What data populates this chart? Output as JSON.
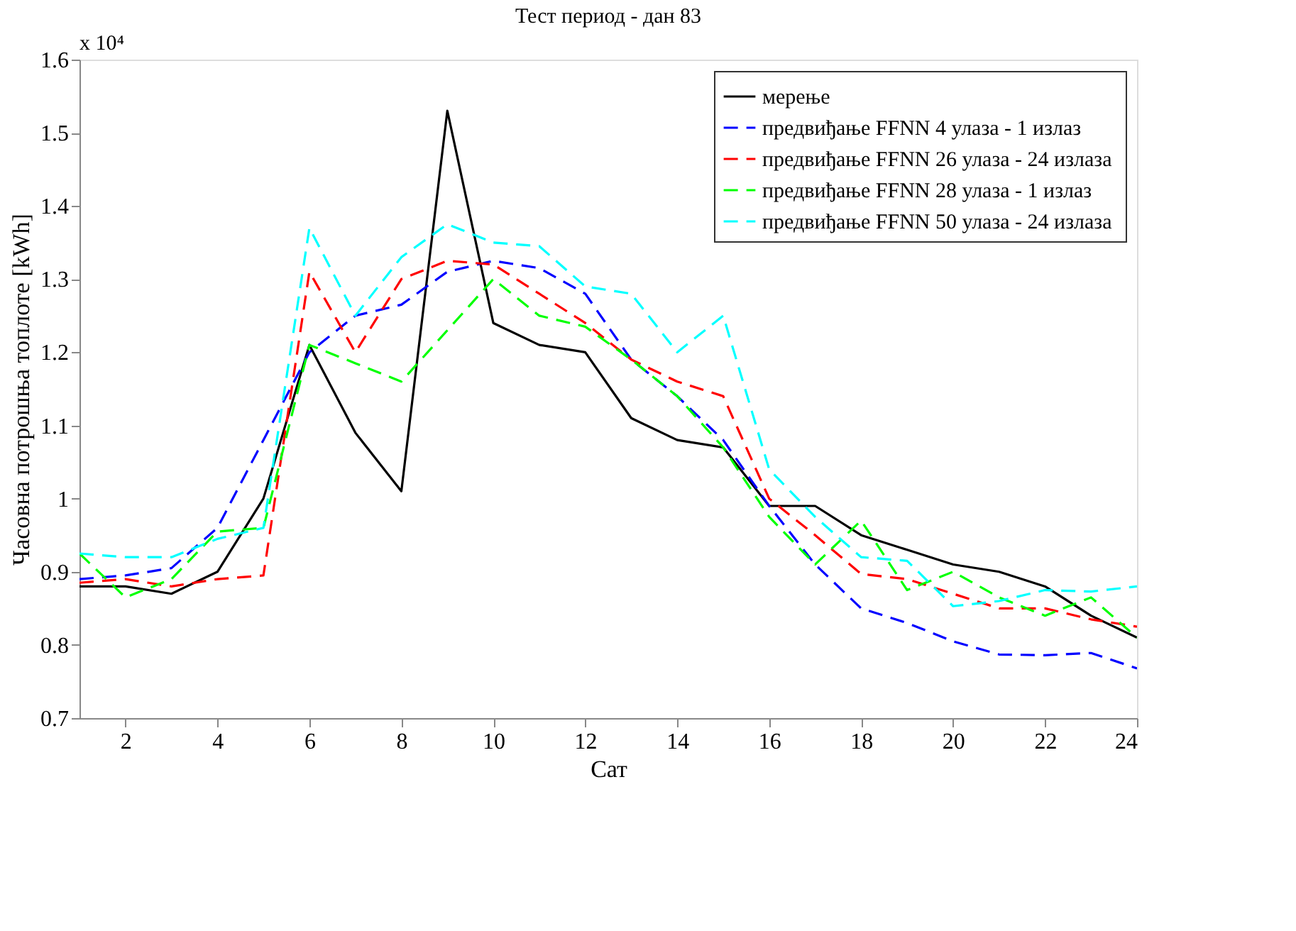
{
  "chart_data": {
    "type": "line",
    "title": "Тест период - дан 83",
    "xlabel": "Сат",
    "ylabel": "Часовна потрошња топлоте [kWh]",
    "annotations": [
      "x 10⁴"
    ],
    "x": [
      1,
      2,
      3,
      4,
      5,
      6,
      7,
      8,
      9,
      10,
      11,
      12,
      13,
      14,
      15,
      16,
      17,
      18,
      19,
      20,
      21,
      22,
      23,
      24
    ],
    "xlim": [
      1,
      24
    ],
    "xticks": [
      2,
      4,
      6,
      8,
      10,
      12,
      14,
      16,
      18,
      20,
      22,
      24
    ],
    "ylim": [
      0.7,
      1.6
    ],
    "yticks": [
      0.7,
      0.8,
      0.9,
      1,
      1.1,
      1.2,
      1.3,
      1.4,
      1.5,
      1.6
    ],
    "grid": false,
    "legend": "top right",
    "marker": "none",
    "series": [
      {
        "name": "мерење",
        "color": "#000000",
        "line_style": "solid",
        "values": [
          0.88,
          0.88,
          0.87,
          0.9,
          1.0,
          1.21,
          1.09,
          1.01,
          1.53,
          1.24,
          1.21,
          1.2,
          1.11,
          1.08,
          1.07,
          0.99,
          0.99,
          0.95,
          0.93,
          0.91,
          0.9,
          0.88,
          0.84,
          0.81
        ]
      },
      {
        "name": "предвиђање FFNN 4 улаза - 1 излаз",
        "color": "#0000ff",
        "line_style": "dashed",
        "values": [
          0.89,
          0.895,
          0.905,
          0.96,
          1.08,
          1.2,
          1.25,
          1.265,
          1.31,
          1.325,
          1.315,
          1.28,
          1.19,
          1.14,
          1.08,
          0.99,
          0.91,
          0.85,
          0.83,
          0.805,
          0.787,
          0.786,
          0.789,
          0.768
        ]
      },
      {
        "name": "предвиђање FFNN  26 улаза - 24 излаза",
        "color": "#ff0000",
        "line_style": "dashed",
        "values": [
          0.885,
          0.89,
          0.88,
          0.89,
          0.895,
          1.31,
          1.2,
          1.3,
          1.325,
          1.32,
          1.28,
          1.24,
          1.19,
          1.16,
          1.14,
          1.0,
          0.95,
          0.897,
          0.89,
          0.87,
          0.85,
          0.85,
          0.835,
          0.825
        ]
      },
      {
        "name": "предвиђање FFNN 28 улаза - 1 излаз",
        "color": "#00ff00",
        "line_style": "dashed",
        "values": [
          0.925,
          0.865,
          0.89,
          0.955,
          0.96,
          1.21,
          1.185,
          1.16,
          1.23,
          1.3,
          1.25,
          1.235,
          1.19,
          1.14,
          1.07,
          0.975,
          0.91,
          0.97,
          0.875,
          0.9,
          0.865,
          0.84,
          0.865,
          0.81
        ]
      },
      {
        "name": "предвиђање FFNN 50 улаза - 24 излаза",
        "color": "#00ffff",
        "line_style": "dashed",
        "values": [
          0.925,
          0.92,
          0.92,
          0.945,
          0.96,
          1.37,
          1.25,
          1.33,
          1.375,
          1.35,
          1.345,
          1.29,
          1.28,
          1.2,
          1.25,
          1.04,
          0.975,
          0.92,
          0.915,
          0.853,
          0.86,
          0.875,
          0.873,
          0.88
        ]
      }
    ]
  }
}
